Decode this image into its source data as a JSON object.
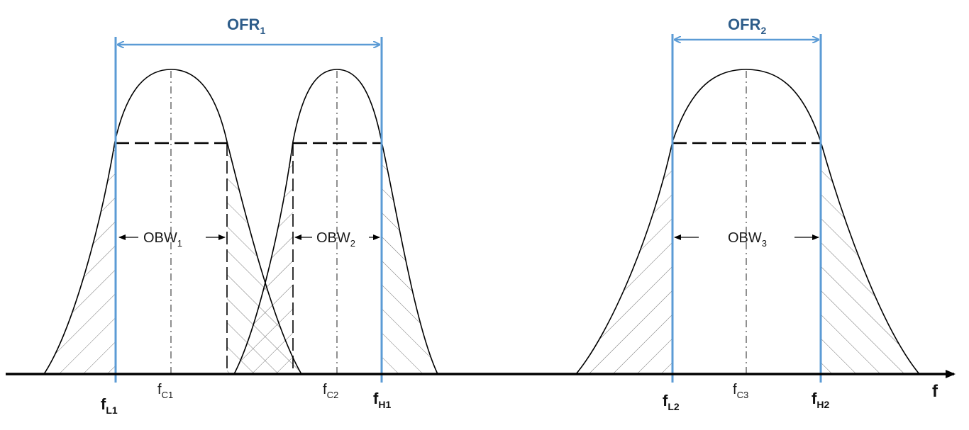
{
  "colors": {
    "accent": "#5b9bd5",
    "ofr_text": "#2e5d8a",
    "curve": "#000000"
  },
  "ofr": [
    {
      "base": "OFR",
      "sub": "1"
    },
    {
      "base": "OFR",
      "sub": "2"
    }
  ],
  "obw": [
    {
      "base": "OBW",
      "sub": "1"
    },
    {
      "base": "OBW",
      "sub": "2"
    },
    {
      "base": "OBW",
      "sub": "3"
    }
  ],
  "axis": {
    "label": "f",
    "center_labels": [
      {
        "base": "f",
        "sub": "C1"
      },
      {
        "base": "f",
        "sub": "C2"
      },
      {
        "base": "f",
        "sub": "C3"
      }
    ],
    "edge_labels": [
      {
        "base": "f",
        "sub": "L1"
      },
      {
        "base": "f",
        "sub": "H1"
      },
      {
        "base": "f",
        "sub": "L2"
      },
      {
        "base": "f",
        "sub": "H2"
      }
    ]
  }
}
